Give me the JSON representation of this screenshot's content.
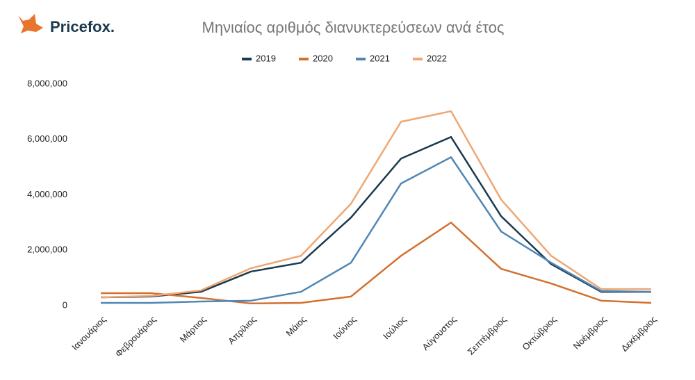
{
  "brand": "Pricefox.",
  "chart_data": {
    "type": "line",
    "title": "Μηνιαίος αριθμός διανυκτερεύσεων ανά έτος",
    "categories": [
      "Ιανουάριος",
      "Φεβρουάριος",
      "Μάρτιος",
      "Απρίλιος",
      "Μάιος",
      "Ιούνιος",
      "Ιούλιος",
      "Αύγουστος",
      "Σεπτέμβριος",
      "Οκτώβριος",
      "Νοέμβριος",
      "Δεκέμβριος"
    ],
    "series": [
      {
        "name": "2019",
        "color": "#1b3a4e",
        "values": [
          300000,
          330000,
          500000,
          1230000,
          1550000,
          3180000,
          5310000,
          6090000,
          3230000,
          1500000,
          500000,
          500000
        ]
      },
      {
        "name": "2020",
        "color": "#d4702f",
        "values": [
          450000,
          450000,
          280000,
          80000,
          100000,
          330000,
          1800000,
          3000000,
          1330000,
          800000,
          180000,
          100000
        ]
      },
      {
        "name": "2021",
        "color": "#4f86b5",
        "values": [
          100000,
          100000,
          150000,
          180000,
          500000,
          1550000,
          4410000,
          5360000,
          2680000,
          1550000,
          530000,
          500000
        ]
      },
      {
        "name": "2022",
        "color": "#efa673",
        "values": [
          300000,
          350000,
          550000,
          1350000,
          1800000,
          3680000,
          6640000,
          7020000,
          3830000,
          1800000,
          600000,
          600000
        ]
      }
    ],
    "ylim": [
      0,
      8000000
    ],
    "yticks": [
      {
        "value": 0,
        "label": "0"
      },
      {
        "value": 2000000,
        "label": "2,000,000"
      },
      {
        "value": 4000000,
        "label": "4,000,000"
      },
      {
        "value": 6000000,
        "label": "6,000,000"
      },
      {
        "value": 8000000,
        "label": "8,000,000"
      }
    ],
    "grid": false,
    "legend": "top"
  }
}
